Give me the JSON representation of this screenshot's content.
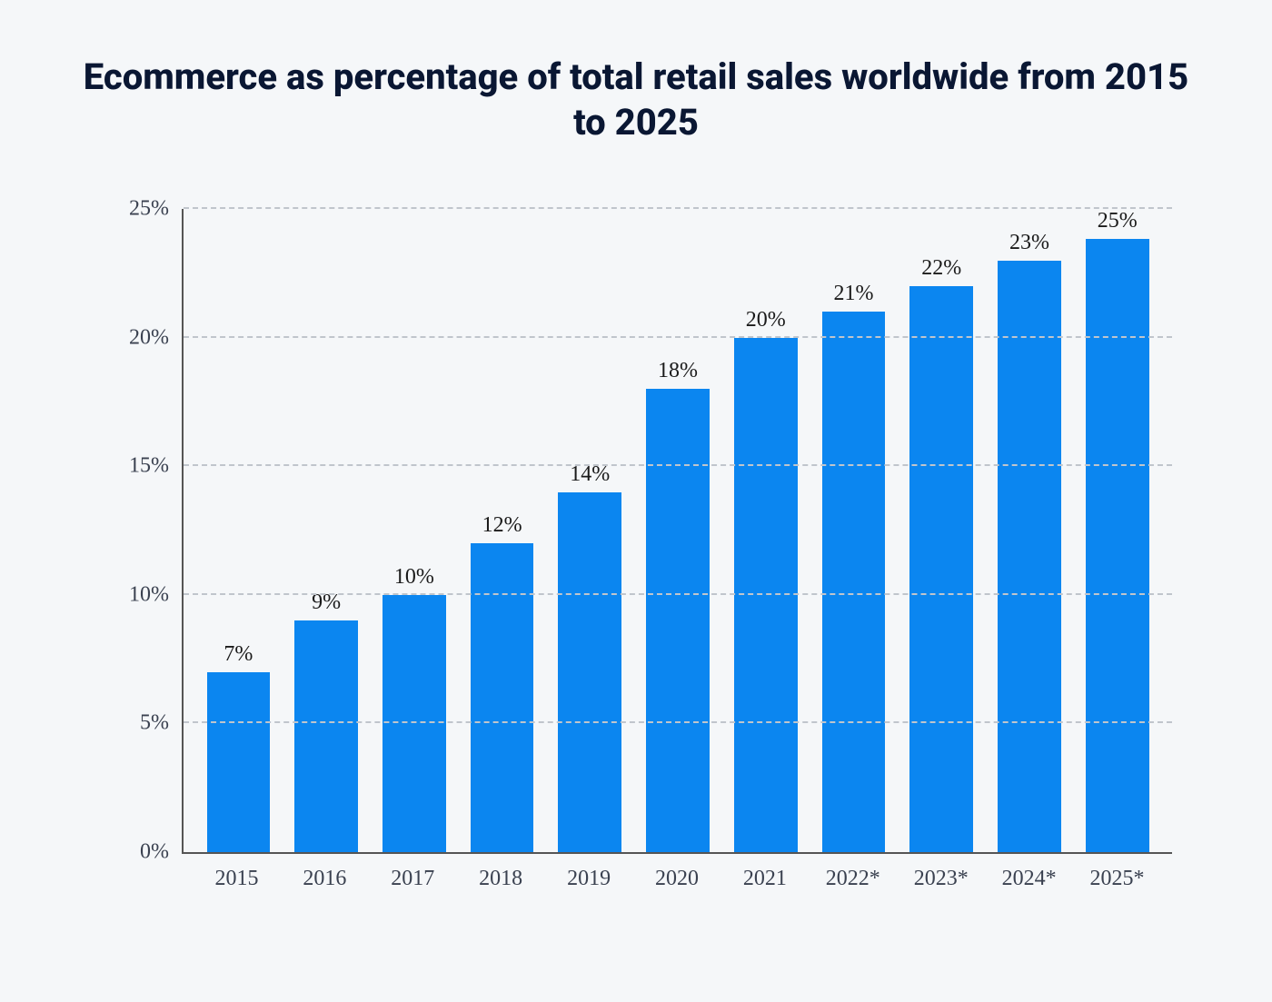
{
  "chart": {
    "type": "bar",
    "title": "Ecommerce as percentage of total retail sales worldwide from 2015 to 2025",
    "title_fontsize": 40,
    "title_color": "#0a1733",
    "background_color": "#f5f7f9",
    "categories": [
      "2015",
      "2016",
      "2017",
      "2018",
      "2019",
      "2020",
      "2021",
      "2022*",
      "2023*",
      "2024*",
      "2025*"
    ],
    "values": [
      7,
      9,
      10,
      12,
      14,
      18,
      20,
      21,
      22,
      23,
      25
    ],
    "value_labels": [
      "7%",
      "9%",
      "10%",
      "12%",
      "14%",
      "18%",
      "20%",
      "21%",
      "22%",
      "23%",
      "25%"
    ],
    "bar_color": "#0b86f0",
    "ylim": [
      0,
      25
    ],
    "ytick_step": 5,
    "ytick_labels": [
      "0%",
      "5%",
      "10%",
      "15%",
      "20%",
      "25%"
    ],
    "grid_color": "#c0c5cc",
    "axis_color": "#555555",
    "tick_label_color": "#3a4150",
    "tick_label_fontsize": 24,
    "value_label_fontsize": 24,
    "bar_width": 0.72
  }
}
